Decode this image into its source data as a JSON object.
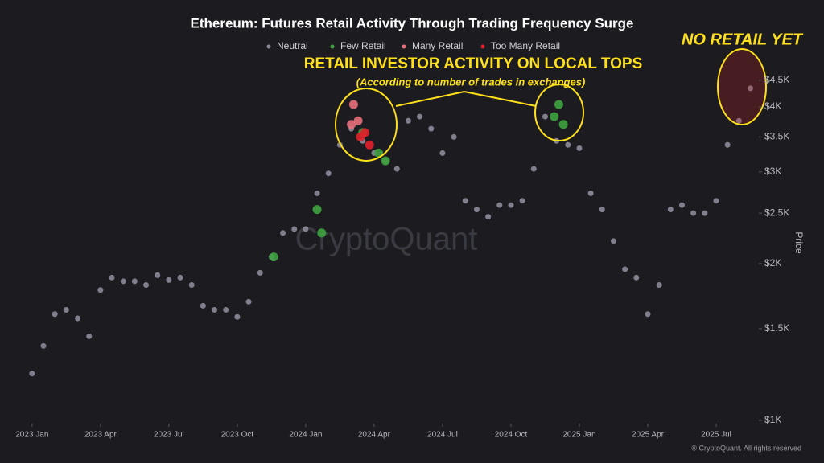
{
  "chart_data": {
    "type": "scatter",
    "title": "Ethereum: Futures Retail Activity Through Trading Frequency Surge",
    "annotations": [
      "RETAIL INVESTOR ACTIVITY ON LOCAL TOPS",
      "(According to number of trades in exchanges)",
      "NO RETAIL YET"
    ],
    "watermark": "CryptoQuant",
    "credit": "® CryptoQuant. All rights reserved",
    "y_label": "Price",
    "log_y": true,
    "grid": false,
    "legend": "top",
    "xlim": [
      -0.7,
      31.8
    ],
    "xticks": [
      {
        "value": 0,
        "label": "2023 Jan"
      },
      {
        "value": 3,
        "label": "2023 Apr"
      },
      {
        "value": 6,
        "label": "2023 Jul"
      },
      {
        "value": 9,
        "label": "2023 Oct"
      },
      {
        "value": 12,
        "label": "2024 Jan"
      },
      {
        "value": 15,
        "label": "2024 Apr"
      },
      {
        "value": 18,
        "label": "2024 Jul"
      },
      {
        "value": 21,
        "label": "2024 Oct"
      },
      {
        "value": 24,
        "label": "2025 Jan"
      },
      {
        "value": 27,
        "label": "2025 Apr"
      },
      {
        "value": 30,
        "label": "2025 Jul"
      }
    ],
    "ylim": [
      1000,
      5200
    ],
    "yticks": [
      {
        "value": 1000,
        "label": "$1K"
      },
      {
        "value": 1500,
        "label": "$1.5K"
      },
      {
        "value": 2000,
        "label": "$2K"
      },
      {
        "value": 2500,
        "label": "$2.5K"
      },
      {
        "value": 3000,
        "label": "$3K"
      },
      {
        "value": 3500,
        "label": "$3.5K"
      },
      {
        "value": 4000,
        "label": "$4K"
      },
      {
        "value": 4500,
        "label": "$4.5K"
      }
    ],
    "series": [
      {
        "name": "Neutral",
        "color": "#8e8a99",
        "x": [
          0,
          0.5,
          1,
          1.5,
          2,
          2.5,
          3,
          3.5,
          4,
          4.5,
          5,
          5.5,
          6,
          6.5,
          7,
          7.5,
          8,
          8.5,
          9,
          9.5,
          10,
          10.5,
          11,
          11.5,
          12,
          12.5,
          13,
          13.5,
          14,
          14.5,
          15,
          15.5,
          16,
          16.5,
          17,
          17.5,
          18,
          18.5,
          19,
          19.5,
          20,
          20.5,
          21,
          21.5,
          22,
          22.5,
          23,
          23.5,
          24,
          24.5,
          25,
          25.5,
          26,
          26.5,
          27,
          27.5,
          28,
          28.5,
          29,
          29.5,
          30,
          30.5,
          31,
          31.5
        ],
        "values": [
          1230,
          1390,
          1600,
          1630,
          1570,
          1450,
          1780,
          1880,
          1850,
          1850,
          1820,
          1900,
          1860,
          1880,
          1820,
          1660,
          1630,
          1630,
          1580,
          1690,
          1920,
          2060,
          2290,
          2330,
          2330,
          2730,
          2980,
          3380,
          3630,
          3440,
          3260,
          3150,
          3040,
          3760,
          3830,
          3630,
          3260,
          3500,
          2640,
          2540,
          2460,
          2590,
          2590,
          2640,
          3040,
          3830,
          3440,
          3380,
          3330,
          2730,
          2540,
          2210,
          1950,
          1880,
          1600,
          1820,
          2540,
          2590,
          2500,
          2500,
          2640,
          3380,
          3760,
          4340
        ]
      },
      {
        "name": "Few Retail",
        "color": "#3fa33f",
        "x": [
          10.6,
          12.5,
          12.7,
          14.5,
          15.2,
          15.5,
          22.9,
          23.1,
          23.3
        ],
        "values": [
          2060,
          2540,
          2290,
          3570,
          3260,
          3150,
          3830,
          4040,
          3700
        ]
      },
      {
        "name": "Many Retail",
        "color": "#e8707a",
        "x": [
          14.0,
          14.1,
          14.3
        ],
        "values": [
          3700,
          4040,
          3760
        ]
      },
      {
        "name": "Too Many Retail",
        "color": "#e0202a",
        "x": [
          14.4,
          14.6,
          14.8
        ],
        "values": [
          3500,
          3570,
          3380
        ]
      }
    ]
  }
}
